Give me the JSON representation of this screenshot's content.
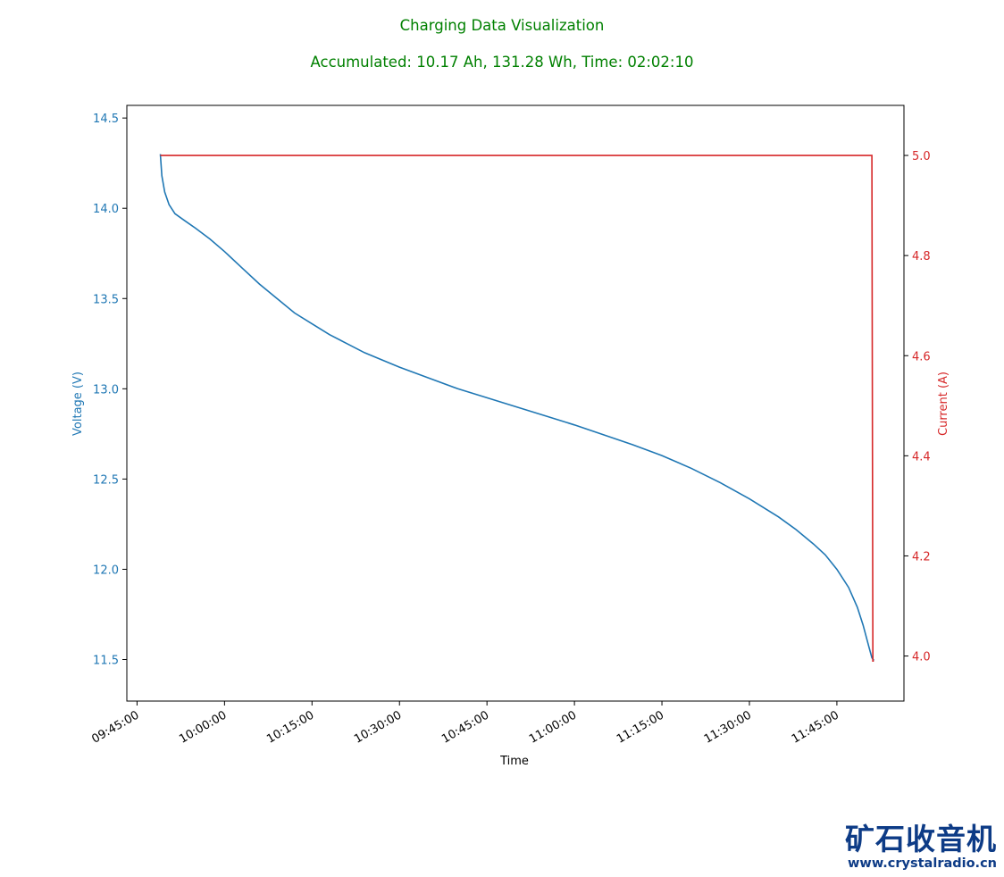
{
  "chart_data": {
    "type": "line",
    "title": "Charging Data Visualization",
    "subtitle": "Accumulated: 10.17 Ah, 131.28 Wh, Time: 02:02:10",
    "title_color": "#008000",
    "xlabel": "Time",
    "ylabel_left": "Voltage (V)",
    "ylabel_right": "Current (A)",
    "xlim": [
      "09:43:15",
      "11:56:30"
    ],
    "x_ticks": [
      "09:45:00",
      "10:00:00",
      "10:15:00",
      "10:30:00",
      "10:45:00",
      "11:00:00",
      "11:15:00",
      "11:30:00",
      "11:45:00"
    ],
    "ylim_left": [
      11.27,
      14.57
    ],
    "yticks_left": [
      11.5,
      12.0,
      12.5,
      13.0,
      13.5,
      14.0,
      14.5
    ],
    "ylim_right": [
      3.91,
      5.1
    ],
    "yticks_right": [
      4.0,
      4.2,
      4.4,
      4.6,
      4.8,
      5.0
    ],
    "grid": false,
    "series": [
      {
        "name": "Voltage (V)",
        "axis": "left",
        "color": "#1f77b4",
        "points": [
          [
            "09:49:00",
            14.3
          ],
          [
            "09:49:15",
            14.18
          ],
          [
            "09:49:45",
            14.09
          ],
          [
            "09:50:30",
            14.02
          ],
          [
            "09:51:30",
            13.97
          ],
          [
            "09:53:00",
            13.935
          ],
          [
            "09:55:00",
            13.89
          ],
          [
            "09:57:30",
            13.83
          ],
          [
            "10:00:00",
            13.76
          ],
          [
            "10:03:00",
            13.67
          ],
          [
            "10:06:00",
            13.58
          ],
          [
            "10:09:00",
            13.5
          ],
          [
            "10:12:00",
            13.42
          ],
          [
            "10:15:00",
            13.36
          ],
          [
            "10:18:00",
            13.3
          ],
          [
            "10:21:00",
            13.25
          ],
          [
            "10:24:00",
            13.2
          ],
          [
            "10:27:00",
            13.16
          ],
          [
            "10:30:00",
            13.12
          ],
          [
            "10:35:00",
            13.06
          ],
          [
            "10:40:00",
            13.0
          ],
          [
            "10:45:00",
            12.95
          ],
          [
            "10:50:00",
            12.9
          ],
          [
            "10:55:00",
            12.85
          ],
          [
            "11:00:00",
            12.8
          ],
          [
            "11:05:00",
            12.745
          ],
          [
            "11:10:00",
            12.69
          ],
          [
            "11:15:00",
            12.63
          ],
          [
            "11:20:00",
            12.56
          ],
          [
            "11:25:00",
            12.48
          ],
          [
            "11:30:00",
            12.39
          ],
          [
            "11:35:00",
            12.29
          ],
          [
            "11:38:00",
            12.22
          ],
          [
            "11:41:00",
            12.14
          ],
          [
            "11:43:00",
            12.08
          ],
          [
            "11:45:00",
            12.0
          ],
          [
            "11:47:00",
            11.9
          ],
          [
            "11:48:30",
            11.79
          ],
          [
            "11:49:30",
            11.69
          ],
          [
            "11:50:30",
            11.57
          ],
          [
            "11:51:00",
            11.51
          ],
          [
            "11:51:20",
            11.495
          ]
        ]
      },
      {
        "name": "Current (A)",
        "axis": "right",
        "color": "#d62728",
        "points": [
          [
            "09:49:00",
            5.0
          ],
          [
            "11:51:00",
            5.0
          ],
          [
            "11:51:10",
            3.99
          ],
          [
            "11:51:20",
            3.99
          ]
        ]
      }
    ]
  },
  "watermark": {
    "logo_text": "矿石收音机",
    "url": "www.crystalradio.cn",
    "color": "#0d3b86"
  }
}
